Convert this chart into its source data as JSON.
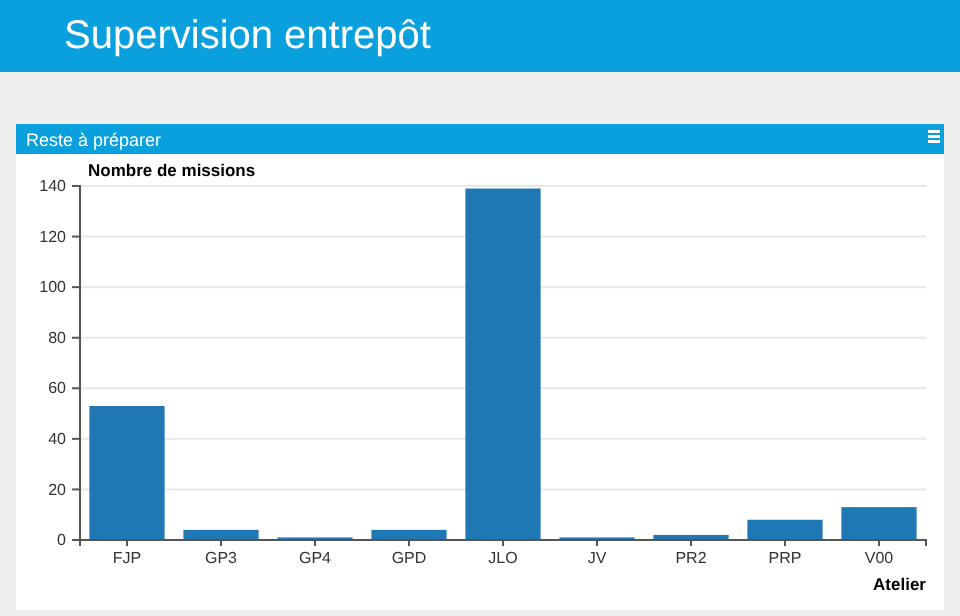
{
  "chart_data": {
    "type": "bar",
    "title": "Supervision entrepôt",
    "subtitle": "Reste à préparer",
    "xlabel": "Atelier",
    "ylabel": "Nombre de missions",
    "categories": [
      "FJP",
      "GP3",
      "GP4",
      "GPD",
      "JLO",
      "JV",
      "PR2",
      "PRP",
      "V00"
    ],
    "values": [
      53,
      4,
      1,
      4,
      139,
      1,
      2,
      8,
      13
    ],
    "color": "#1f77b4",
    "ylim": [
      0,
      140
    ],
    "yticks": [
      0,
      20,
      40,
      60,
      80,
      100,
      120,
      140
    ],
    "grid": "y"
  }
}
